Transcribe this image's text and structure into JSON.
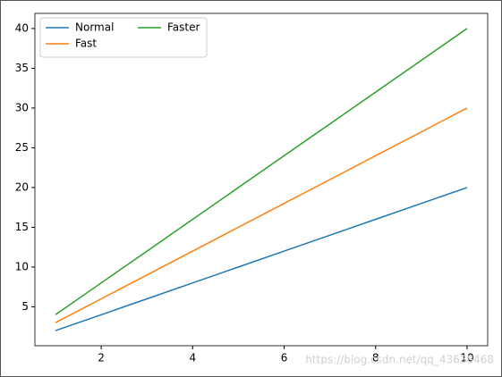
{
  "chart_data": {
    "type": "line",
    "x": [
      1,
      2,
      3,
      4,
      5,
      6,
      7,
      8,
      9,
      10
    ],
    "series": [
      {
        "name": "Normal",
        "color": "#1f77b4",
        "values": [
          2,
          4,
          6,
          8,
          10,
          12,
          14,
          16,
          18,
          20
        ]
      },
      {
        "name": "Fast",
        "color": "#ff7f0e",
        "values": [
          3,
          6,
          9,
          12,
          15,
          18,
          21,
          24,
          27,
          30
        ]
      },
      {
        "name": "Faster",
        "color": "#2ca02c",
        "values": [
          4,
          8,
          12,
          16,
          20,
          24,
          28,
          32,
          36,
          40
        ]
      }
    ],
    "xlim": [
      0.55,
      10.45
    ],
    "xticks": [
      2,
      4,
      6,
      8,
      10
    ],
    "ylim": [
      0.1,
      41.9
    ],
    "yticks": [
      5,
      10,
      15,
      20,
      25,
      30,
      35,
      40
    ],
    "legend": "upper-left",
    "legend_columns": 2,
    "watermark": "https://blog.csdn.net/qq_43638468"
  }
}
